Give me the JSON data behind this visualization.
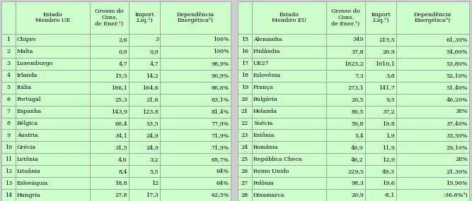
{
  "rows_left": [
    [
      "1",
      "Chipre",
      "2,6",
      "3",
      "100%"
    ],
    [
      "2",
      "Malta",
      "0,9",
      "0,9",
      "100%"
    ],
    [
      "3",
      "Luxemburgo",
      "4,7",
      "4,7",
      "98,9%"
    ],
    [
      "4",
      "Irlanda",
      "15,5",
      "14,2",
      "90,9%"
    ],
    [
      "5",
      "Itália",
      "186,1",
      "164,6",
      "86,8%"
    ],
    [
      "6",
      "Portugal",
      "25,3",
      "21,6",
      "83,1%"
    ],
    [
      "7",
      "Espanha",
      "143,9",
      "123,8",
      "81,4%"
    ],
    [
      "8",
      "Bélgica",
      "60,4",
      "53,5",
      "77,9%"
    ],
    [
      "9",
      "Áustria",
      "34,1",
      "24,9",
      "71,9%"
    ],
    [
      "10",
      "Grécia",
      "31,5",
      "24,9",
      "71,9%"
    ],
    [
      "11",
      "Letônia",
      "4,6",
      "3,2",
      "65,7%"
    ],
    [
      "12",
      "Lituânia",
      "8,4",
      "5,5",
      "64%"
    ],
    [
      "13",
      "Eslováquia",
      "18,8",
      "12",
      "64%"
    ],
    [
      "14",
      "Hungria",
      "27,8",
      "17,3",
      "62,5%"
    ]
  ],
  "rows_right": [
    [
      "15",
      "Alemanha",
      "349",
      "215,5",
      "61,30%"
    ],
    [
      "16",
      "Finlândia",
      "37,8",
      "20,9",
      "54,60%"
    ],
    [
      "17",
      "UE27",
      "1825,2",
      "1010,1",
      "53,80%"
    ],
    [
      "18",
      "Eslovênia",
      "7,3",
      "3,8",
      "52,10%"
    ],
    [
      "19",
      "França",
      "273,1",
      "141,7",
      "51,40%"
    ],
    [
      "20",
      "Bulgária",
      "20,5",
      "9,5",
      "46,20%"
    ],
    [
      "21",
      "Holanda",
      "80,5",
      "37,2",
      "38%"
    ],
    [
      "22",
      "Suécia",
      "50,8",
      "19,8",
      "37,40%"
    ],
    [
      "23",
      "Estônia",
      "5,4",
      "1,9",
      "33,50%"
    ],
    [
      "24",
      "România",
      "40,9",
      "11,9",
      "29,10%"
    ],
    [
      "25",
      "República Checa",
      "46,2",
      "12,9",
      "28%"
    ],
    [
      "26",
      "Reino Unido",
      "229,5",
      "49,3",
      "21,30%"
    ],
    [
      "27",
      "Polônia",
      "98,3",
      "19,6",
      "19,90%"
    ],
    [
      "28",
      "Dinamarca",
      "20,9",
      "-8,1",
      "-36,8%⁴)"
    ]
  ],
  "header_left": [
    "",
    "Estado\nMembro UE",
    "Grosso do\nCons.\nde Ener.¹)",
    "Import\n.Liq.²)",
    "Dependência\nEnergética³)"
  ],
  "header_right": [
    "",
    "Estado\nMembro EU",
    "Grosso do\nCons.\nde Ener.¹)",
    "Import\n.Liq.²)",
    "Dependência\nEnergética³)"
  ],
  "cell_bg": "#ccffcc",
  "ue27_bg": "#ccffcc",
  "border_color": "#888888",
  "text_color": "#000000",
  "font_size": 5.8,
  "header_font_size": 5.8,
  "gap_color": "#aaaaaa",
  "fig_bg": "#cccccc"
}
